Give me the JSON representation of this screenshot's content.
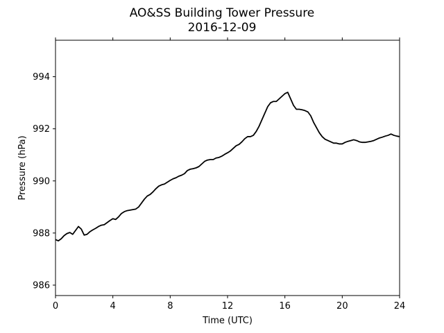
{
  "chart_data": {
    "type": "line",
    "title": "AO&SS Building Tower Pressure",
    "subtitle": "2016-12-09",
    "xlabel": "Time (UTC)",
    "ylabel": "Pressure (hPa)",
    "xlim": [
      0,
      24
    ],
    "ylim": [
      985.6,
      995.4
    ],
    "xticks": [
      0,
      4,
      8,
      12,
      16,
      20,
      24
    ],
    "yticks": [
      986,
      988,
      990,
      992,
      994
    ],
    "grid": false,
    "legend": "none",
    "line_color": "#000000",
    "series": [
      {
        "x": [
          0.0,
          0.2,
          0.4,
          0.6,
          0.8,
          1.0,
          1.2,
          1.4,
          1.6,
          1.8,
          2.0,
          2.2,
          2.4,
          2.6,
          2.8,
          3.0,
          3.2,
          3.4,
          3.6,
          3.8,
          4.0,
          4.2,
          4.4,
          4.6,
          4.8,
          5.0,
          5.2,
          5.4,
          5.6,
          5.8,
          6.0,
          6.2,
          6.4,
          6.6,
          6.8,
          7.0,
          7.2,
          7.4,
          7.6,
          7.8,
          8.0,
          8.2,
          8.4,
          8.6,
          8.8,
          9.0,
          9.2,
          9.4,
          9.6,
          9.8,
          10.0,
          10.2,
          10.4,
          10.6,
          10.8,
          11.0,
          11.2,
          11.4,
          11.6,
          11.8,
          12.0,
          12.2,
          12.4,
          12.6,
          12.8,
          13.0,
          13.2,
          13.4,
          13.6,
          13.8,
          14.0,
          14.2,
          14.4,
          14.6,
          14.8,
          15.0,
          15.2,
          15.4,
          15.6,
          15.8,
          16.0,
          16.2,
          16.4,
          16.6,
          16.8,
          17.0,
          17.2,
          17.4,
          17.6,
          17.8,
          18.0,
          18.2,
          18.4,
          18.6,
          18.8,
          19.0,
          19.2,
          19.4,
          19.6,
          19.8,
          20.0,
          20.2,
          20.4,
          20.6,
          20.8,
          21.0,
          21.2,
          21.4,
          21.6,
          21.8,
          22.0,
          22.2,
          22.4,
          22.6,
          22.8,
          23.0,
          23.2,
          23.4,
          23.6,
          23.8,
          24.0
        ],
        "values": [
          987.75,
          987.7,
          987.78,
          987.9,
          987.98,
          988.02,
          987.95,
          988.1,
          988.25,
          988.15,
          987.92,
          987.95,
          988.05,
          988.12,
          988.18,
          988.25,
          988.3,
          988.32,
          988.4,
          988.48,
          988.55,
          988.52,
          988.62,
          988.75,
          988.82,
          988.86,
          988.88,
          988.9,
          988.92,
          989.0,
          989.15,
          989.3,
          989.42,
          989.48,
          989.58,
          989.7,
          989.8,
          989.85,
          989.88,
          989.95,
          990.02,
          990.08,
          990.12,
          990.18,
          990.22,
          990.28,
          990.4,
          990.45,
          990.47,
          990.5,
          990.55,
          990.65,
          990.75,
          990.8,
          990.82,
          990.82,
          990.88,
          990.9,
          990.95,
          991.02,
          991.08,
          991.15,
          991.25,
          991.35,
          991.4,
          991.5,
          991.62,
          991.7,
          991.7,
          991.75,
          991.9,
          992.1,
          992.35,
          992.6,
          992.85,
          993.0,
          993.05,
          993.05,
          993.15,
          993.25,
          993.35,
          993.4,
          993.15,
          992.9,
          992.75,
          992.75,
          992.73,
          992.7,
          992.65,
          992.5,
          992.25,
          992.05,
          991.85,
          991.7,
          991.6,
          991.55,
          991.5,
          991.45,
          991.45,
          991.42,
          991.42,
          991.48,
          991.52,
          991.55,
          991.58,
          991.55,
          991.5,
          991.48,
          991.48,
          991.5,
          991.52,
          991.55,
          991.6,
          991.65,
          991.68,
          991.72,
          991.75,
          991.8,
          991.75,
          991.72,
          991.7
        ]
      }
    ]
  }
}
